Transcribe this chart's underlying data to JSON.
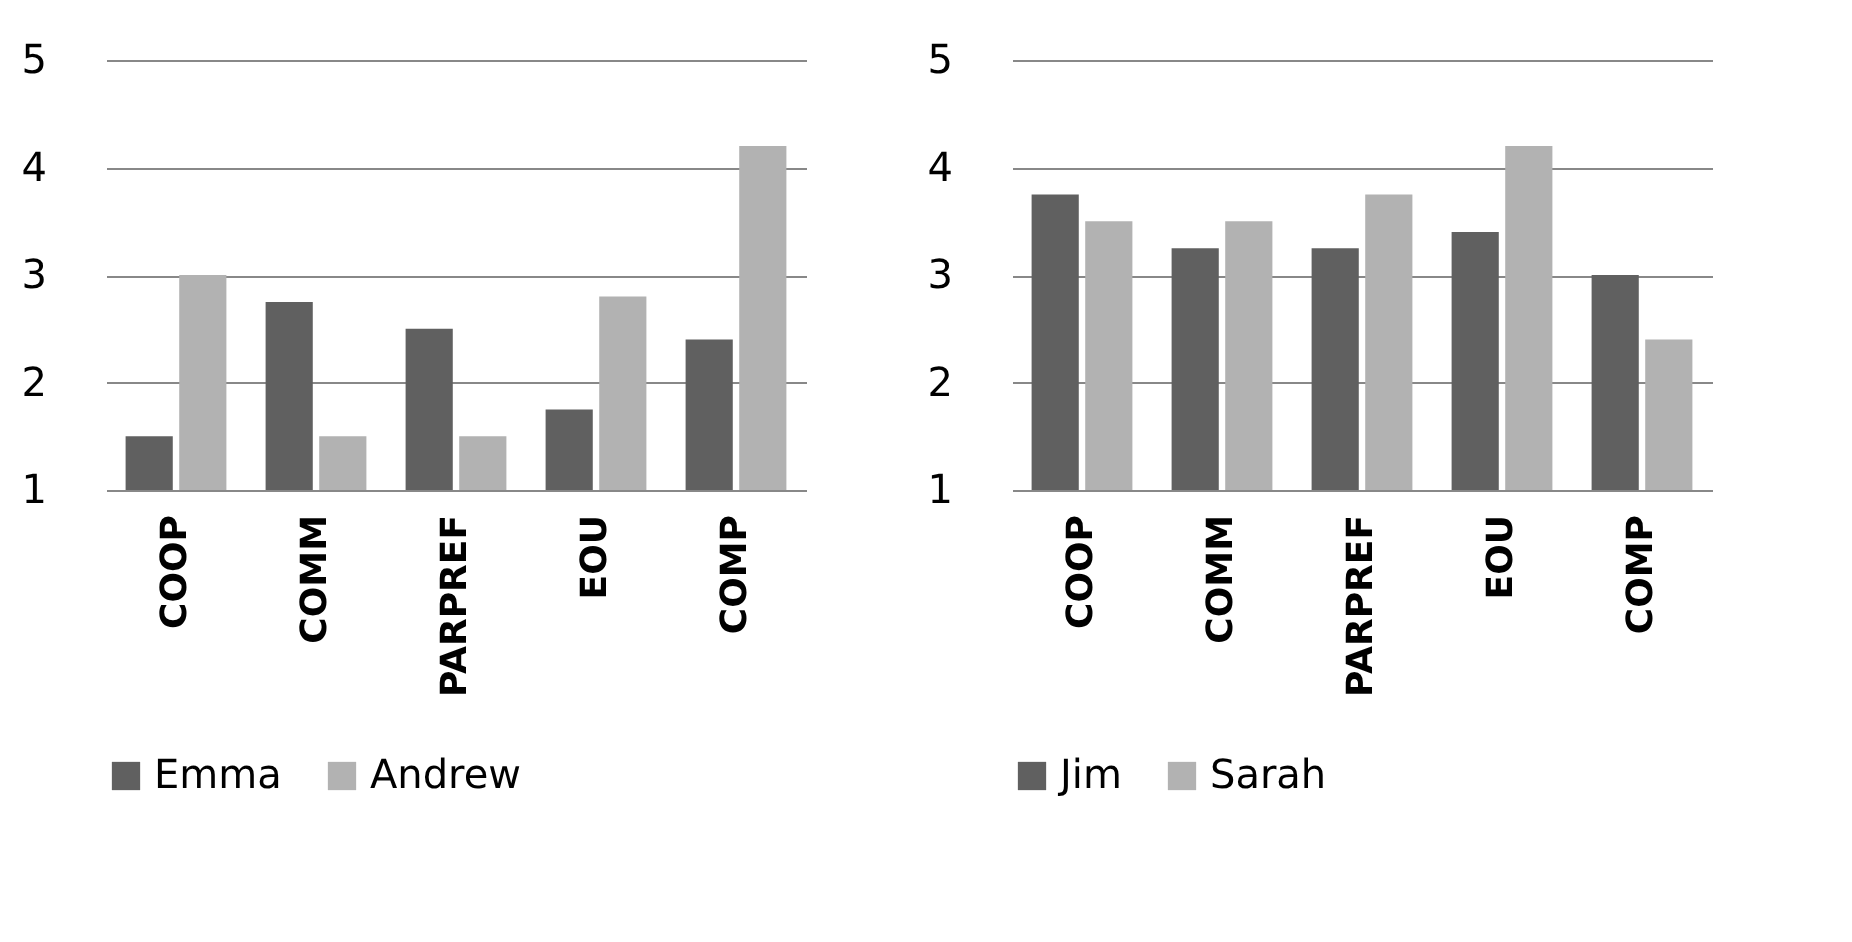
{
  "chart_data": [
    {
      "type": "bar",
      "categories": [
        "COOP",
        "COMM",
        "PARPREF",
        "EOU",
        "COMP"
      ],
      "ylim": [
        1,
        5
      ],
      "yticks": [
        1,
        2,
        3,
        4,
        5
      ],
      "grid": "y",
      "legend": "bottom",
      "series": [
        {
          "name": "Emma",
          "color": "#606060",
          "values": [
            1.5,
            2.75,
            2.5,
            1.75,
            2.4
          ]
        },
        {
          "name": "Andrew",
          "color": "#b2b2b2",
          "values": [
            3.0,
            1.5,
            1.5,
            2.8,
            4.2
          ]
        }
      ]
    },
    {
      "type": "bar",
      "categories": [
        "COOP",
        "COMM",
        "PARPREF",
        "EOU",
        "COMP"
      ],
      "ylim": [
        1,
        5
      ],
      "yticks": [
        1,
        2,
        3,
        4,
        5
      ],
      "grid": "y",
      "legend": "bottom",
      "series": [
        {
          "name": "Jim",
          "color": "#606060",
          "values": [
            3.75,
            3.25,
            3.25,
            3.4,
            3.0
          ]
        },
        {
          "name": "Sarah",
          "color": "#b2b2b2",
          "values": [
            3.5,
            3.5,
            3.75,
            4.2,
            2.4
          ]
        }
      ]
    }
  ]
}
